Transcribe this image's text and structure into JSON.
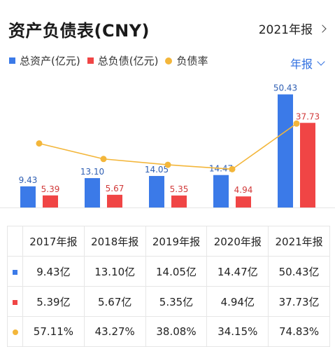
{
  "header": {
    "title": "资产负债表(CNY)",
    "period_link": "2021年报"
  },
  "legend": [
    {
      "label": "总资产(亿元)",
      "color": "#3b7ae8",
      "shape": "square"
    },
    {
      "label": "总负债(亿元)",
      "color": "#f04545",
      "shape": "square"
    },
    {
      "label": "负债率",
      "color": "#f3b63a",
      "shape": "circle"
    }
  ],
  "period_select": "年报",
  "chart_data": {
    "type": "bar",
    "categories": [
      "2017年报",
      "2018年报",
      "2019年报",
      "2020年报",
      "2021年报"
    ],
    "series": [
      {
        "name": "总资产(亿元)",
        "type": "bar",
        "color": "#3b7ae8",
        "values": [
          9.43,
          13.1,
          14.05,
          14.47,
          50.43
        ],
        "labels": [
          "9.43",
          "13.10",
          "14.05",
          "14.47",
          "50.43"
        ]
      },
      {
        "name": "总负债(亿元)",
        "type": "bar",
        "color": "#f04545",
        "values": [
          5.39,
          5.67,
          5.35,
          4.94,
          37.73
        ],
        "labels": [
          "5.39",
          "5.67",
          "5.35",
          "4.94",
          "37.73"
        ]
      },
      {
        "name": "负债率",
        "type": "line",
        "color": "#f3b63a",
        "values": [
          57.11,
          43.27,
          38.08,
          34.15,
          74.83
        ]
      }
    ],
    "ylim_bars": [
      0,
      55
    ],
    "ylim_line": [
      0,
      110
    ],
    "grid": false
  },
  "table": {
    "columns": [
      "2017年报",
      "2018年报",
      "2019年报",
      "2020年报",
      "2021年报"
    ],
    "rows": [
      {
        "marker": "square",
        "color": "#3b7ae8",
        "values": [
          "9.43亿",
          "13.10亿",
          "14.05亿",
          "14.47亿",
          "50.43亿"
        ]
      },
      {
        "marker": "square",
        "color": "#f04545",
        "values": [
          "5.39亿",
          "5.67亿",
          "5.35亿",
          "4.94亿",
          "37.73亿"
        ]
      },
      {
        "marker": "circle",
        "color": "#f3b63a",
        "values": [
          "57.11%",
          "43.27%",
          "38.08%",
          "34.15%",
          "74.83%"
        ]
      }
    ]
  }
}
